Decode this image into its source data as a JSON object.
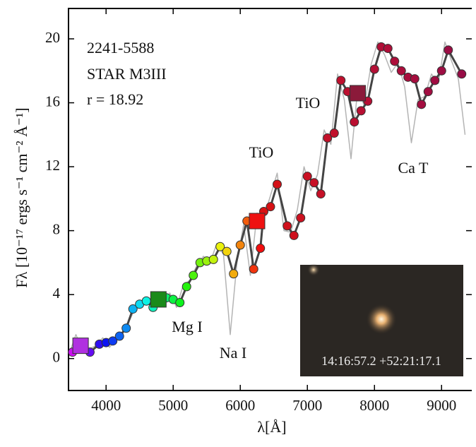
{
  "chart_data": {
    "type": "line",
    "xlabel": "λ[Å]",
    "ylabel": "Fλ [10⁻¹⁷ ergs s⁻¹ cm⁻² Å⁻¹]",
    "xlim": [
      3440,
      9450
    ],
    "ylim": [
      -2,
      21.9
    ],
    "xticks": [
      4000,
      5000,
      6000,
      7000,
      8000,
      9000
    ],
    "yticks": [
      0,
      4,
      8,
      12,
      16,
      20
    ],
    "annotations": [
      "2241-5588",
      "STAR M3III",
      "r = 18.92",
      "TiO",
      "TiO",
      "Ca T",
      "Mg I",
      "Na I"
    ],
    "inset_label": "14:16:57.2 +52:21:17.1",
    "series": [
      {
        "color": "#b4b4b4",
        "x": [
          3450,
          3550,
          3650,
          3750,
          3850,
          3950,
          4050,
          4150,
          4250,
          4350,
          4450,
          4550,
          4650,
          4750,
          4850,
          4950,
          5050,
          5150,
          5250,
          5350,
          5450,
          5550,
          5650,
          5750,
          5850,
          5950,
          6050,
          6150,
          6250,
          6350,
          6450,
          6550,
          6650,
          6750,
          6850,
          6950,
          7050,
          7150,
          7250,
          7350,
          7450,
          7550,
          7650,
          7750,
          7850,
          7950,
          8050,
          8150,
          8250,
          8350,
          8450,
          8550,
          8650,
          8750,
          8850,
          8950,
          9050,
          9150,
          9250,
          9350
        ],
        "values": [
          0.3,
          1.5,
          0.5,
          0.6,
          0.8,
          1.3,
          0.7,
          1.2,
          1.6,
          2.4,
          3.3,
          3.6,
          3.4,
          4.0,
          3.3,
          4.1,
          3.2,
          4.6,
          4.9,
          5.8,
          6.4,
          6.0,
          7.2,
          6.5,
          1.5,
          6.0,
          8.4,
          5.2,
          9.1,
          8.8,
          10.2,
          11.6,
          8.0,
          7.9,
          9.3,
          12.0,
          10.5,
          11.5,
          14.3,
          13.4,
          17.8,
          16.2,
          12.5,
          16.9,
          15.8,
          18.4,
          19.8,
          19.0,
          17.9,
          18.5,
          17.0,
          13.5,
          16.2,
          16.4,
          17.8,
          17.2,
          19.8,
          18.6,
          17.5,
          14.0
        ]
      },
      {
        "color": "#444444",
        "x": [
          3500,
          3600,
          3760,
          3900,
          4000,
          4100,
          4200,
          4300,
          4400,
          4500,
          4600,
          4700,
          4800,
          4900,
          5000,
          5100,
          5200,
          5300,
          5400,
          5500,
          5600,
          5700,
          5800,
          5900,
          6000,
          6100,
          6200,
          6300,
          6350,
          6450,
          6550,
          6700,
          6800,
          6900,
          7000,
          7100,
          7200,
          7300,
          7400,
          7500,
          7600,
          7700,
          7800,
          7900,
          8000,
          8100,
          8200,
          8300,
          8400,
          8500,
          8600,
          8700,
          8800,
          8900,
          9000,
          9100,
          9300
        ],
        "values": [
          0.4,
          0.7,
          0.4,
          0.9,
          1.0,
          1.1,
          1.4,
          1.9,
          3.1,
          3.4,
          3.6,
          3.2,
          3.8,
          3.8,
          3.7,
          3.5,
          4.5,
          5.2,
          6.0,
          6.1,
          6.2,
          7.0,
          6.7,
          5.3,
          7.1,
          8.6,
          5.6,
          6.9,
          9.2,
          9.5,
          10.9,
          8.3,
          7.7,
          8.8,
          11.4,
          11.0,
          10.3,
          13.8,
          14.1,
          17.4,
          16.7,
          14.8,
          15.5,
          16.1,
          18.1,
          19.5,
          19.4,
          18.6,
          18.0,
          17.6,
          17.5,
          15.9,
          16.7,
          17.4,
          18.0,
          19.3,
          17.8
        ]
      },
      {
        "x": [
          3620,
          4780,
          6250,
          7750
        ],
        "values": [
          0.8,
          3.7,
          8.6,
          16.6
        ],
        "colors": [
          "#b030e0",
          "#1a8a1a",
          "#ee1111",
          "#8b1a3a"
        ]
      }
    ]
  }
}
